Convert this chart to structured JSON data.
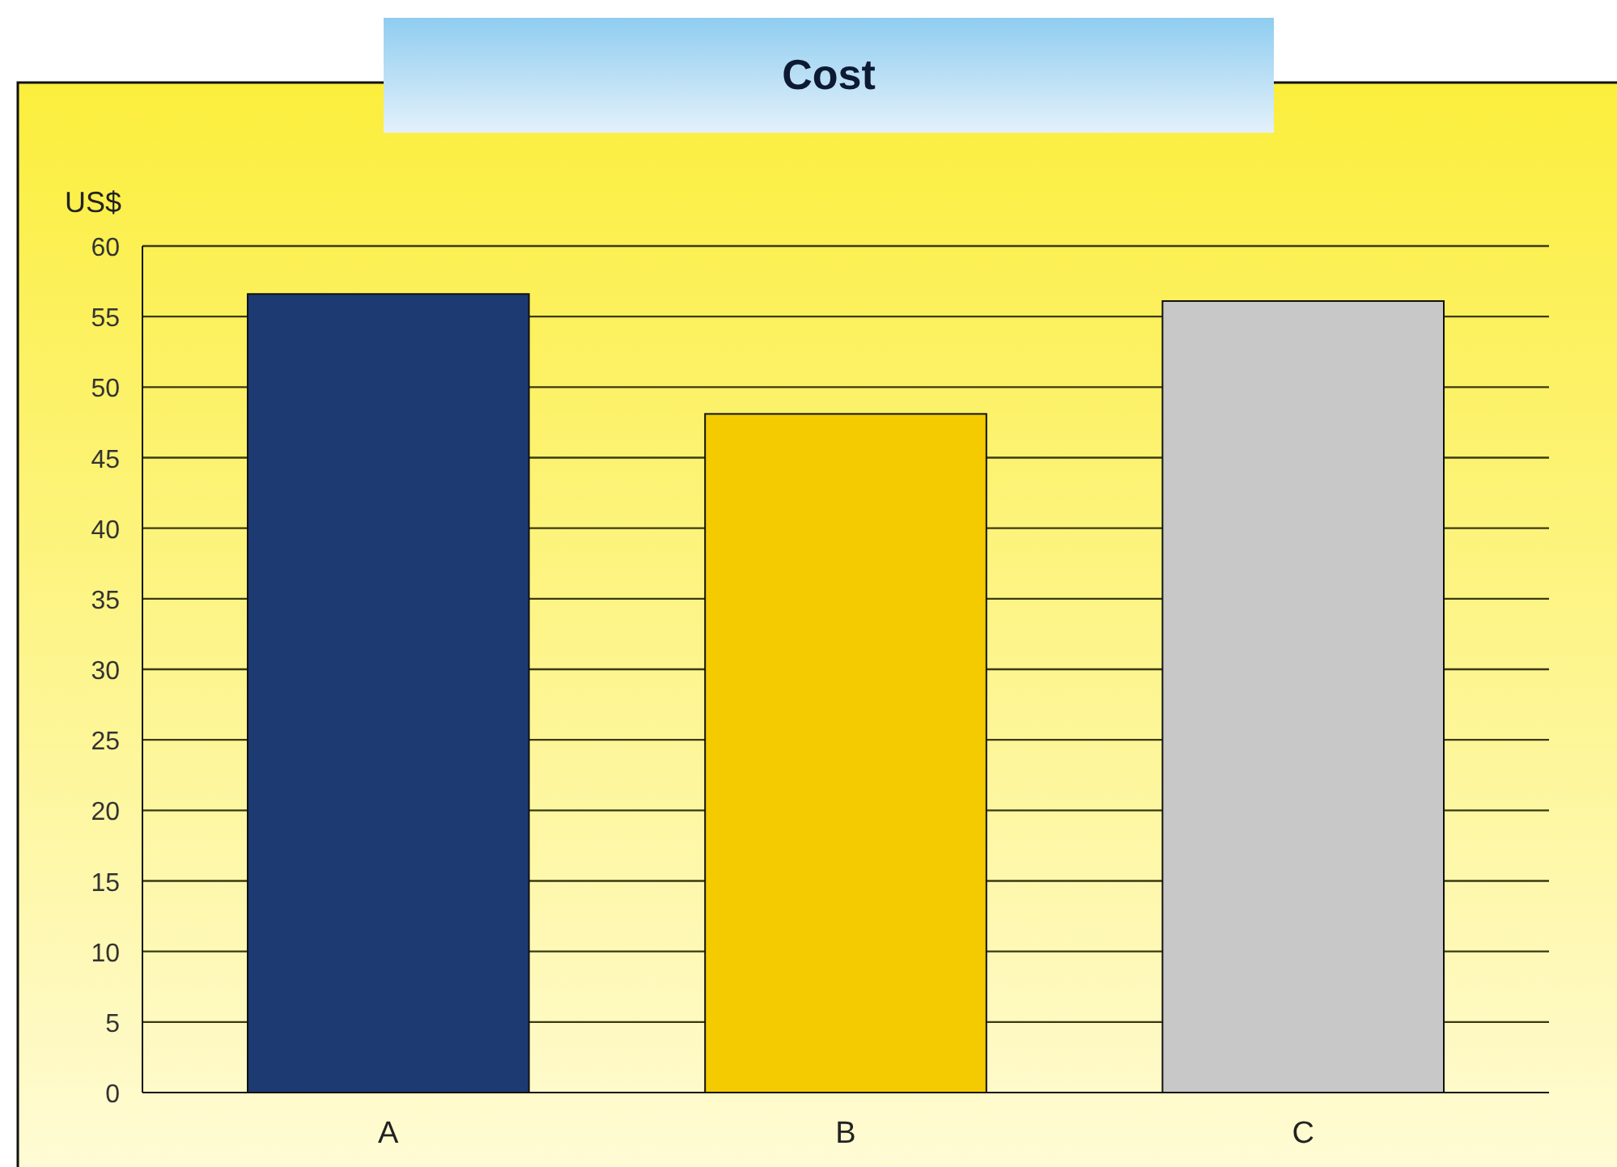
{
  "chart_data": {
    "type": "bar",
    "title": "Cost",
    "ylabel": "US$",
    "categories": [
      "A",
      "B",
      "C"
    ],
    "values": [
      56.6,
      48.1,
      56.1
    ],
    "colors": [
      "#1d3a72",
      "#f3cb00",
      "#c8c8c8"
    ],
    "ylim": [
      0,
      60
    ],
    "yticks": [
      0,
      5,
      10,
      15,
      20,
      25,
      30,
      35,
      40,
      45,
      50,
      55,
      60
    ],
    "grid": "y"
  }
}
